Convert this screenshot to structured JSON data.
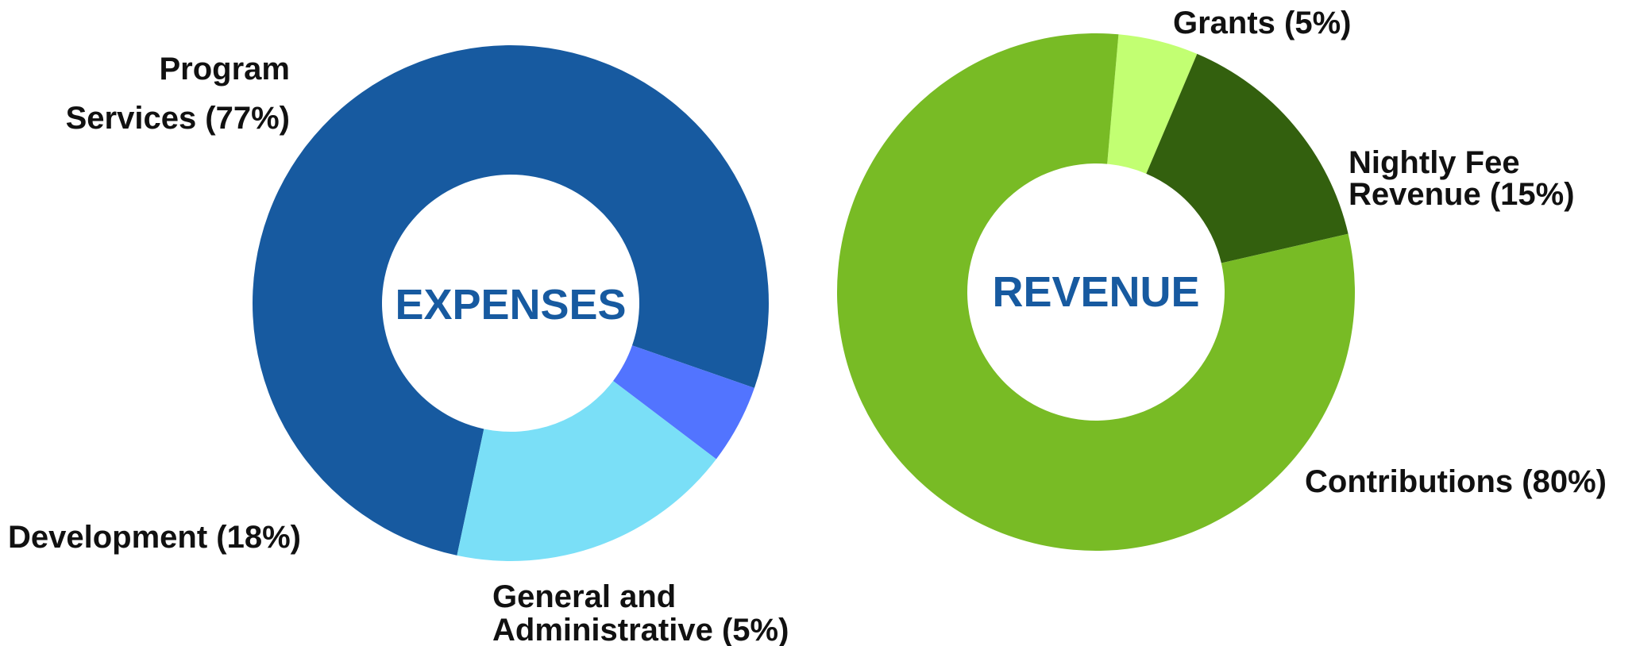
{
  "chart_data": [
    {
      "type": "pie",
      "style": "donut",
      "center_label": "EXPENSES",
      "center_label_color": "#175aa0",
      "slices": [
        {
          "name": "Program Services",
          "value": 77,
          "label_lines": [
            "Program",
            "Services (77%)"
          ],
          "color": "#175aa0"
        },
        {
          "name": "General and Administrative",
          "value": 5,
          "label_lines": [
            "General and",
            "Administrative (5%)"
          ],
          "color": "#5274ff"
        },
        {
          "name": "Development",
          "value": 18,
          "label_lines": [
            "Development (18%)"
          ],
          "color": "#7adff7"
        }
      ]
    },
    {
      "type": "pie",
      "style": "donut",
      "center_label": "REVENUE",
      "center_label_color": "#175aa0",
      "slices": [
        {
          "name": "Grants",
          "value": 5,
          "label_lines": [
            "Grants (5%)"
          ],
          "color": "#c2ff72"
        },
        {
          "name": "Nightly Fee Revenue",
          "value": 15,
          "label_lines": [
            "Nightly Fee",
            "Revenue (15%)"
          ],
          "color": "#33600e"
        },
        {
          "name": "Contributions",
          "value": 80,
          "label_lines": [
            "Contributions (80%)"
          ],
          "color": "#78bb25"
        }
      ]
    }
  ]
}
